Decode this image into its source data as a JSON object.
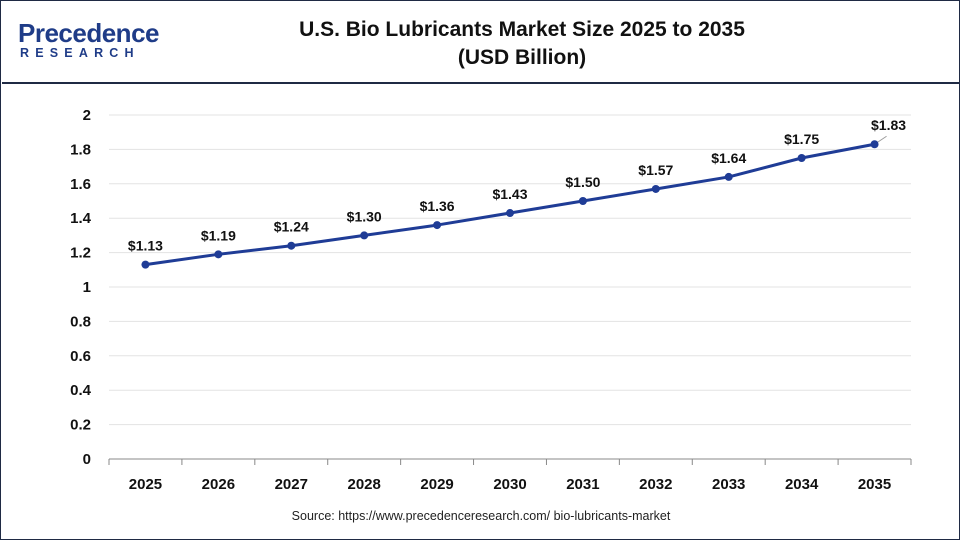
{
  "header": {
    "logo_word": "Precedence",
    "logo_sub": "RESEARCH",
    "title_line1": "U.S. Bio Lubricants Market Size 2025 to 2035",
    "title_line2": "(USD Billion)"
  },
  "footer": {
    "source": "Source: https://www.precedenceresearch.com/ bio-lubricants-market"
  },
  "colors": {
    "line": "#1f3c96",
    "grid": "#e3e3e3",
    "axis": "#888888",
    "brand": "#1f3c88"
  },
  "chart_data": {
    "type": "line",
    "title": "U.S. Bio Lubricants Market Size 2025 to 2035 (USD Billion)",
    "xlabel": "",
    "ylabel": "",
    "categories": [
      "2025",
      "2026",
      "2027",
      "2028",
      "2029",
      "2030",
      "2031",
      "2032",
      "2033",
      "2034",
      "2035"
    ],
    "values": [
      1.13,
      1.19,
      1.24,
      1.3,
      1.36,
      1.43,
      1.5,
      1.57,
      1.64,
      1.75,
      1.83
    ],
    "data_labels": [
      "$1.13",
      "$1.19",
      "$1.24",
      "$1.30",
      "$1.36",
      "$1.43",
      "$1.50",
      "$1.57",
      "$1.64",
      "$1.75",
      "$1.83"
    ],
    "ylim": [
      0,
      2
    ],
    "yticks": [
      "0",
      "0.2",
      "0.4",
      "0.6",
      "0.8",
      "1",
      "1.2",
      "1.4",
      "1.6",
      "1.8",
      "2"
    ],
    "grid": true,
    "legend": "none"
  }
}
